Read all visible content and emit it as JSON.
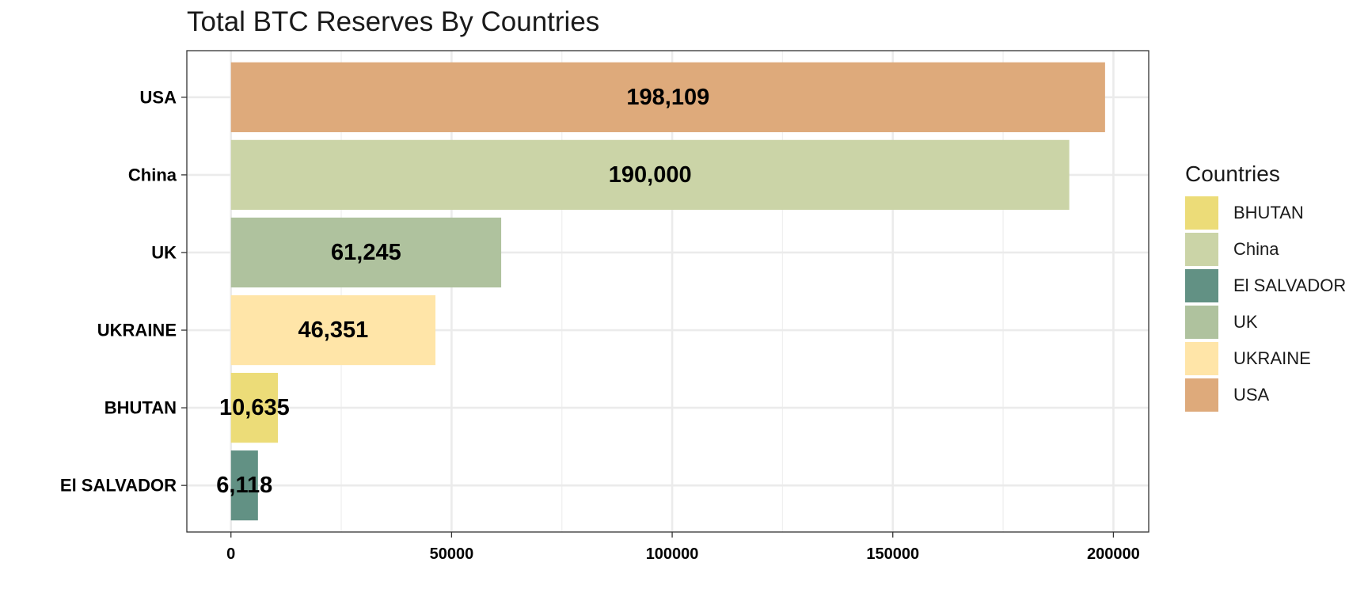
{
  "chart_data": {
    "type": "bar",
    "orientation": "horizontal",
    "title": "Total BTC Reserves By Countries",
    "xlabel": "",
    "ylabel": "",
    "xlim": [
      -10000,
      208000
    ],
    "x_ticks": [
      0,
      50000,
      100000,
      150000,
      200000
    ],
    "x_tick_labels": [
      "0",
      "50000",
      "100000",
      "150000",
      "200000"
    ],
    "grid": true,
    "categories": [
      "USA",
      "China",
      "UK",
      "UKRAINE",
      "BHUTAN",
      "El SALVADOR"
    ],
    "values": [
      198109,
      190000,
      61245,
      46351,
      10635,
      6118
    ],
    "data_labels": [
      "198,109",
      "190,000",
      "61,245",
      "46,351",
      "10,635",
      "6,118"
    ],
    "colors": {
      "USA": "#DEAA7B",
      "China": "#CBD4A7",
      "UK": "#AFC29E",
      "UKRAINE": "#FFE5A8",
      "BHUTAN": "#ECDC78",
      "El SALVADOR": "#629184"
    },
    "legend": {
      "title": "Countries",
      "position": "right",
      "entries": [
        "BHUTAN",
        "China",
        "El SALVADOR",
        "UK",
        "UKRAINE",
        "USA"
      ]
    }
  }
}
